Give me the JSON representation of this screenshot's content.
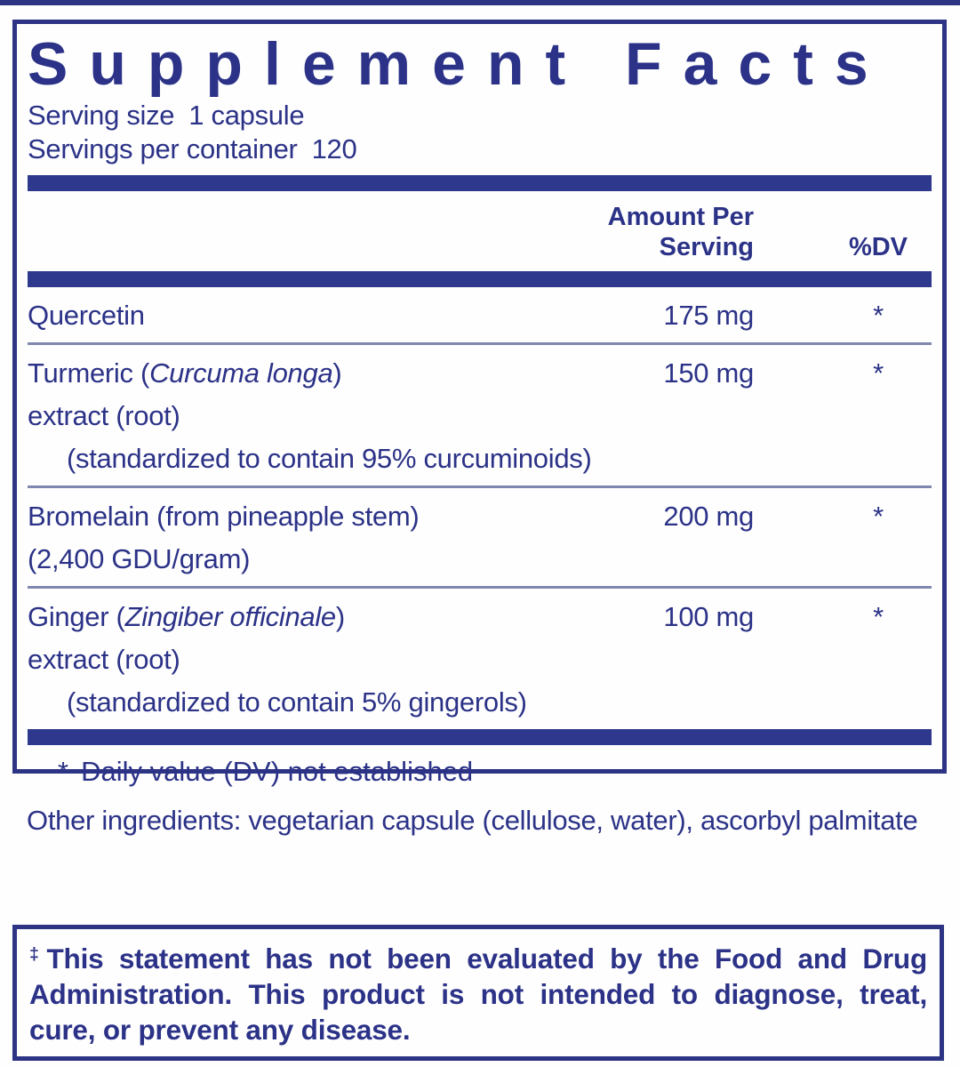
{
  "colors": {
    "navy_text": "#2b3287",
    "navy_bar": "#2e388c",
    "navy_border": "#2d3484",
    "separator_gray_blue": "#8087ae",
    "background": "#fefefe"
  },
  "facts": {
    "title": "Supplement Facts",
    "serving_size_label": "Serving size",
    "serving_size_value": "1 capsule",
    "servings_per_container_label": "Servings per container",
    "servings_per_container_value": "120",
    "columns": {
      "amount": "Amount Per Serving",
      "dv": "%DV"
    },
    "rows": [
      {
        "name": "Quercetin",
        "amount": "175 mg",
        "dv": "*"
      },
      {
        "name_prefix": "Turmeric (",
        "name_italic": "Curcuma longa",
        "name_suffix": ")",
        "line2": "extract (root)",
        "line3": "(standardized to contain 95% curcuminoids)",
        "amount": "150 mg",
        "dv": "*"
      },
      {
        "name": "Bromelain (from pineapple stem)",
        "line2": "(2,400 GDU/gram)",
        "amount": "200 mg",
        "dv": "*"
      },
      {
        "name_prefix": "Ginger (",
        "name_italic": "Zingiber officinale",
        "name_suffix": ")",
        "line2": "extract (root)",
        "line3": "(standardized to contain 5% gingerols)",
        "amount": "100 mg",
        "dv": "*"
      }
    ],
    "footnote_star": "*",
    "footnote_text": "Daily value (DV) not established"
  },
  "other_ingredients": "Other ingredients: vegetarian capsule (cellulose, water), ascorbyl palmitate",
  "disclaimer": {
    "dagger": "‡",
    "text": "This statement has not been evaluated by the Food and Drug Administration. This product is not intended to diagnose, treat, cure, or prevent any disease."
  }
}
